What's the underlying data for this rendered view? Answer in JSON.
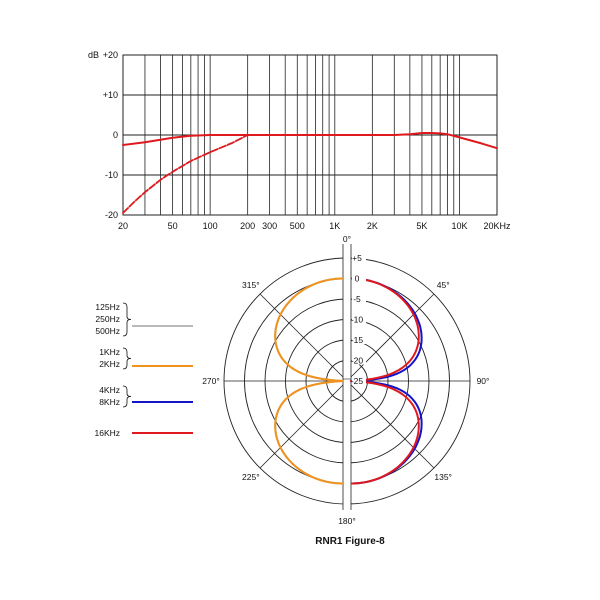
{
  "caption": "RNR1 Figure-8",
  "colors": {
    "low": "#b9b9b9",
    "mid": "#f0931e",
    "high": "#1414c8",
    "top": "#e0191e",
    "grid": "#222222"
  },
  "chart_data": [
    {
      "type": "line",
      "scale": "log",
      "xlim": [
        20,
        20000
      ],
      "ylim": [
        -20,
        20
      ],
      "ylabel": "dB",
      "x_ticks": [
        {
          "value": 20,
          "label": "20"
        },
        {
          "value": 50,
          "label": "50"
        },
        {
          "value": 100,
          "label": "100"
        },
        {
          "value": 200,
          "label": "200"
        },
        {
          "value": 300,
          "label": "300"
        },
        {
          "value": 500,
          "label": "500"
        },
        {
          "value": 1000,
          "label": "1K"
        },
        {
          "value": 2000,
          "label": "2K"
        },
        {
          "value": 5000,
          "label": "5K"
        },
        {
          "value": 10000,
          "label": "10K"
        },
        {
          "value": 20000,
          "label": "20KHz"
        }
      ],
      "y_ticks": [
        {
          "value": 20,
          "label": "+20"
        },
        {
          "value": 10,
          "label": "+10"
        },
        {
          "value": 0,
          "label": "0"
        },
        {
          "value": -10,
          "label": "-10"
        },
        {
          "value": -20,
          "label": "-20"
        }
      ],
      "series": [
        {
          "style": "solid",
          "color": "#e0191e",
          "points": [
            [
              20,
              -2.5
            ],
            [
              30,
              -1.8
            ],
            [
              50,
              -0.7
            ],
            [
              70,
              -0.2
            ],
            [
              100,
              0
            ],
            [
              200,
              0
            ],
            [
              1000,
              0
            ],
            [
              3000,
              0
            ],
            [
              4000,
              0.2
            ],
            [
              5000,
              0.5
            ],
            [
              6000,
              0.5
            ],
            [
              7000,
              0.4
            ],
            [
              8000,
              0.2
            ],
            [
              10000,
              -0.6
            ],
            [
              15000,
              -2.1
            ],
            [
              20000,
              -3.3
            ]
          ]
        },
        {
          "style": "dashed",
          "color": "#e0191e",
          "points": [
            [
              20,
              -19.5
            ],
            [
              25,
              -16.5
            ],
            [
              30,
              -14.3
            ],
            [
              40,
              -11.2
            ],
            [
              50,
              -9.2
            ],
            [
              70,
              -6.5
            ],
            [
              100,
              -4.3
            ],
            [
              150,
              -2.0
            ],
            [
              200,
              0
            ]
          ]
        }
      ]
    },
    {
      "type": "polar",
      "r_ticks": [
        {
          "value": 5,
          "label": "+5"
        },
        {
          "value": 0,
          "label": "0"
        },
        {
          "value": -5,
          "label": "-5"
        },
        {
          "value": -10,
          "label": "-10"
        },
        {
          "value": -15,
          "label": "-15"
        },
        {
          "value": -20,
          "label": "-20"
        },
        {
          "value": -25,
          "label": "-25"
        }
      ],
      "r_range": [
        -25,
        5
      ],
      "angle_labels": [
        {
          "angle": 0,
          "label": "0°"
        },
        {
          "angle": 45,
          "label": "45°"
        },
        {
          "angle": 90,
          "label": "90°"
        },
        {
          "angle": 135,
          "label": "135°"
        },
        {
          "angle": 180,
          "label": "180°"
        },
        {
          "angle": 225,
          "label": "225°"
        },
        {
          "angle": 270,
          "label": "270°"
        },
        {
          "angle": 315,
          "label": "315°"
        }
      ],
      "series": [
        {
          "name": "125Hz 250Hz 500Hz",
          "color": "#b9b9b9",
          "side": "left",
          "exponent": 1.0
        },
        {
          "name": "1KHz 2KHz",
          "color": "#f0931e",
          "side": "left",
          "exponent": 1.0
        },
        {
          "name": "4KHz 8KHz",
          "color": "#1414c8",
          "side": "right",
          "exponent": 0.85
        },
        {
          "name": "16KHz",
          "color": "#e0191e",
          "side": "right",
          "exponent": 1.0
        }
      ]
    }
  ],
  "legend": [
    {
      "lines": [
        "125Hz",
        "250Hz",
        "500Hz"
      ],
      "color": "#b9b9b9"
    },
    {
      "lines": [
        "1KHz",
        "2KHz"
      ],
      "color": "#f0931e"
    },
    {
      "lines": [
        "4KHz",
        "8KHz"
      ],
      "color": "#1414c8"
    },
    {
      "lines": [
        "16KHz"
      ],
      "color": "#e0191e"
    }
  ]
}
